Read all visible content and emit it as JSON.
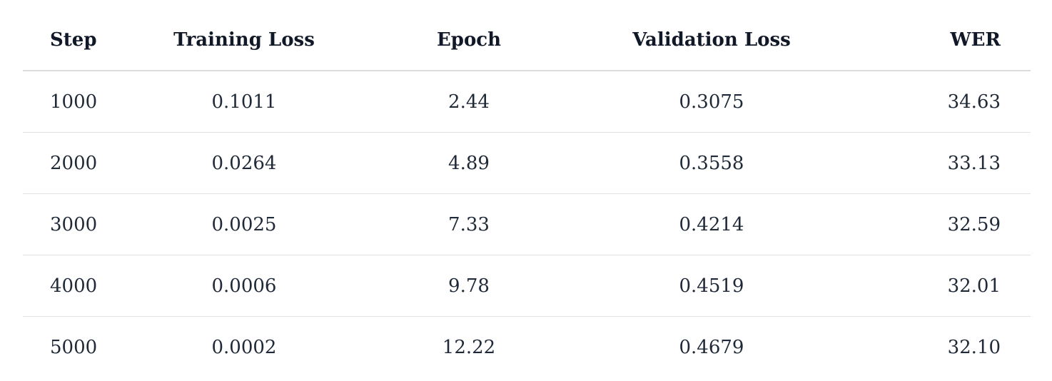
{
  "table": {
    "headers": {
      "step": "Step",
      "training_loss": "Training Loss",
      "epoch": "Epoch",
      "validation_loss": "Validation Loss",
      "wer": "WER"
    },
    "rows": [
      {
        "step": "1000",
        "training_loss": "0.1011",
        "epoch": "2.44",
        "validation_loss": "0.3075",
        "wer": "34.63"
      },
      {
        "step": "2000",
        "training_loss": "0.0264",
        "epoch": "4.89",
        "validation_loss": "0.3558",
        "wer": "33.13"
      },
      {
        "step": "3000",
        "training_loss": "0.0025",
        "epoch": "7.33",
        "validation_loss": "0.4214",
        "wer": "32.59"
      },
      {
        "step": "4000",
        "training_loss": "0.0006",
        "epoch": "9.78",
        "validation_loss": "0.4519",
        "wer": "32.01"
      },
      {
        "step": "5000",
        "training_loss": "0.0002",
        "epoch": "12.22",
        "validation_loss": "0.4679",
        "wer": "32.10"
      }
    ]
  }
}
